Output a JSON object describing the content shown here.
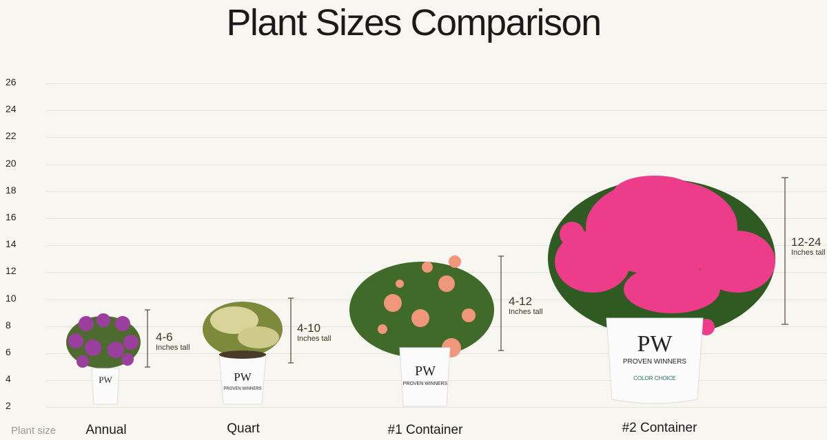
{
  "title": "Plant Sizes Comparison",
  "y_ticks": [
    "26",
    "24",
    "22",
    "20",
    "18",
    "16",
    "14",
    "12",
    "10",
    "8",
    "6",
    "4",
    "2"
  ],
  "x_axis_label": "Plant size",
  "plants": [
    {
      "name": "Annual",
      "range": "4-6",
      "unit": "Inches tall",
      "flower_color": "#9b3f9e"
    },
    {
      "name": "Quart",
      "range": "4-10",
      "unit": "Inches tall",
      "flower_color": "#d9d59a"
    },
    {
      "name": "#1 Container",
      "range": "4-12",
      "unit": "Inches tall",
      "flower_color": "#f0967a"
    },
    {
      "name": "#2 Container",
      "range": "12-24",
      "unit": "Inches tall",
      "flower_color": "#ec3c8a"
    }
  ],
  "pot_brand": "PROVEN WINNERS",
  "pot_logo": "PW"
}
